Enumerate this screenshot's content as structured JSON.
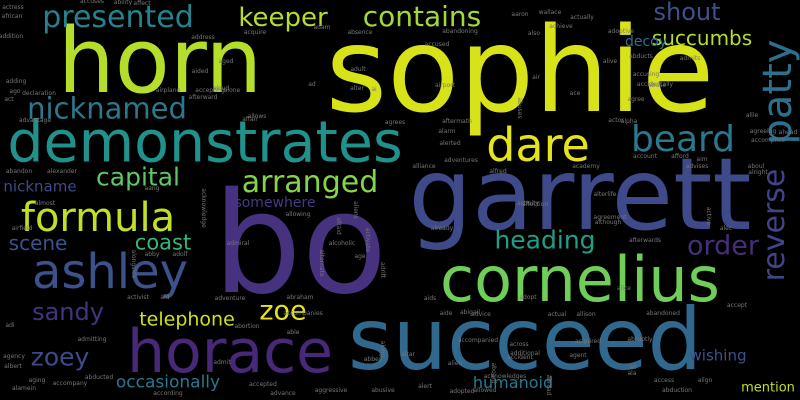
{
  "words": [
    {
      "text": "sophie",
      "color": "#d8e219"
    },
    {
      "text": "bo",
      "color": "#46327e"
    },
    {
      "text": "horn",
      "color": "#b5de2b"
    },
    {
      "text": "succeed",
      "color": "#31688e"
    },
    {
      "text": "garrett",
      "color": "#3e4a89"
    },
    {
      "text": "demonstrates",
      "color": "#21918c"
    },
    {
      "text": "cornelius",
      "color": "#6ece58"
    },
    {
      "text": "horace",
      "color": "#482878"
    },
    {
      "text": "ashley",
      "color": "#3b528b"
    },
    {
      "text": "dare",
      "color": "#e5e419"
    },
    {
      "text": "formula",
      "color": "#c2df23"
    },
    {
      "text": "beard",
      "color": "#2a788e"
    },
    {
      "text": "presented",
      "color": "#26828e"
    },
    {
      "text": "contains",
      "color": "#a0da39"
    },
    {
      "text": "patty",
      "color": "#2d708e"
    },
    {
      "text": "keeper",
      "color": "#b5de2b"
    },
    {
      "text": "nicknamed",
      "color": "#2a788e"
    },
    {
      "text": "arranged",
      "color": "#86d549"
    },
    {
      "text": "capital",
      "color": "#5ec962"
    },
    {
      "text": "reverse",
      "color": "#414487"
    },
    {
      "text": "shout",
      "color": "#3b528b"
    },
    {
      "text": "succumbs",
      "color": "#b5de2b"
    },
    {
      "text": "heading",
      "color": "#1f9e89"
    },
    {
      "text": "order",
      "color": "#472d7b"
    },
    {
      "text": "zoe",
      "color": "#e5e419"
    },
    {
      "text": "coast",
      "color": "#35b779"
    },
    {
      "text": "scene",
      "color": "#3b528b"
    },
    {
      "text": "sandy",
      "color": "#46337e"
    },
    {
      "text": "zoey",
      "color": "#3e4a89"
    },
    {
      "text": "telephone",
      "color": "#d0e11c"
    },
    {
      "text": "occasionally",
      "color": "#2a788e"
    },
    {
      "text": "humanoid",
      "color": "#2a788e"
    },
    {
      "text": "decoy",
      "color": "#2d708e"
    },
    {
      "text": "nickname",
      "color": "#3e4a89"
    },
    {
      "text": "somewhere",
      "color": "#443a83"
    },
    {
      "text": "wishing",
      "color": "#3b528b"
    },
    {
      "text": "mention",
      "color": "#c2df23"
    },
    {
      "text": "accuses",
      "color": "#777777"
    },
    {
      "text": "ability",
      "color": "#777777"
    },
    {
      "text": "affect",
      "color": "#777777"
    },
    {
      "text": "address",
      "color": "#777777"
    },
    {
      "text": "african",
      "color": "#777777"
    },
    {
      "text": "actress",
      "color": "#777777"
    },
    {
      "text": "accepting",
      "color": "#777777"
    },
    {
      "text": "airplane",
      "color": "#777777"
    },
    {
      "text": "aboard",
      "color": "#777777"
    },
    {
      "text": "abbey",
      "color": "#777777"
    },
    {
      "text": "admiral",
      "color": "#777777"
    },
    {
      "text": "alcoholic",
      "color": "#777777"
    },
    {
      "text": "airfield",
      "color": "#777777"
    },
    {
      "text": "alexander",
      "color": "#777777"
    },
    {
      "text": "almost",
      "color": "#777777"
    },
    {
      "text": "abandon",
      "color": "#777777"
    },
    {
      "text": "activist",
      "color": "#777777"
    },
    {
      "text": "abraham",
      "color": "#777777"
    },
    {
      "text": "accompanies",
      "color": "#777777"
    },
    {
      "text": "abortion",
      "color": "#777777"
    },
    {
      "text": "admitting",
      "color": "#777777"
    },
    {
      "text": "agency",
      "color": "#777777"
    },
    {
      "text": "albert",
      "color": "#777777"
    },
    {
      "text": "aging",
      "color": "#777777"
    },
    {
      "text": "alamein",
      "color": "#777777"
    },
    {
      "text": "abducted",
      "color": "#777777"
    },
    {
      "text": "accompany",
      "color": "#777777"
    },
    {
      "text": "accepted",
      "color": "#777777"
    },
    {
      "text": "aggressive",
      "color": "#777777"
    },
    {
      "text": "abusive",
      "color": "#777777"
    },
    {
      "text": "alert",
      "color": "#777777"
    },
    {
      "text": "adopted",
      "color": "#777777"
    },
    {
      "text": "allowed",
      "color": "#777777"
    },
    {
      "text": "advance",
      "color": "#777777"
    },
    {
      "text": "according",
      "color": "#777777"
    },
    {
      "text": "altar",
      "color": "#777777"
    },
    {
      "text": "accompanied",
      "color": "#777777"
    },
    {
      "text": "abigail",
      "color": "#777777"
    },
    {
      "text": "advice",
      "color": "#777777"
    },
    {
      "text": "actual",
      "color": "#777777"
    },
    {
      "text": "additional",
      "color": "#777777"
    },
    {
      "text": "across",
      "color": "#777777"
    },
    {
      "text": "agent",
      "color": "#777777"
    },
    {
      "text": "acquired",
      "color": "#777777"
    },
    {
      "text": "abandoned",
      "color": "#777777"
    },
    {
      "text": "alice",
      "color": "#777777"
    },
    {
      "text": "allison",
      "color": "#777777"
    },
    {
      "text": "access",
      "color": "#777777"
    },
    {
      "text": "abduction",
      "color": "#777777"
    },
    {
      "text": "account",
      "color": "#777777"
    },
    {
      "text": "advises",
      "color": "#777777"
    },
    {
      "text": "afterwards",
      "color": "#777777"
    },
    {
      "text": "abroad",
      "color": "#777777"
    },
    {
      "text": "academy",
      "color": "#777777"
    },
    {
      "text": "alliance",
      "color": "#777777"
    },
    {
      "text": "agreement",
      "color": "#777777"
    },
    {
      "text": "although",
      "color": "#777777"
    },
    {
      "text": "alterlife",
      "color": "#777777"
    },
    {
      "text": "actor",
      "color": "#777777"
    },
    {
      "text": "alpha",
      "color": "#777777"
    },
    {
      "text": "aftermath",
      "color": "#777777"
    },
    {
      "text": "alarm",
      "color": "#777777"
    },
    {
      "text": "alerted",
      "color": "#777777"
    },
    {
      "text": "activity",
      "color": "#777777"
    },
    {
      "text": "affection",
      "color": "#777777"
    },
    {
      "text": "already",
      "color": "#777777"
    },
    {
      "text": "alive",
      "color": "#777777"
    },
    {
      "text": "alter",
      "color": "#777777"
    },
    {
      "text": "adult",
      "color": "#777777"
    },
    {
      "text": "ago",
      "color": "#777777"
    },
    {
      "text": "aided",
      "color": "#777777"
    },
    {
      "text": "aloud",
      "color": "#777777"
    },
    {
      "text": "accusing",
      "color": "#777777"
    },
    {
      "text": "adoptive",
      "color": "#777777"
    },
    {
      "text": "abducts",
      "color": "#777777"
    },
    {
      "text": "admits",
      "color": "#777777"
    },
    {
      "text": "agree",
      "color": "#777777"
    },
    {
      "text": "allie",
      "color": "#777777"
    },
    {
      "text": "ahead",
      "color": "#777777"
    },
    {
      "text": "agreeing",
      "color": "#777777"
    },
    {
      "text": "accomplice",
      "color": "#777777"
    },
    {
      "text": "afford",
      "color": "#777777"
    },
    {
      "text": "aaron",
      "color": "#777777"
    },
    {
      "text": "wallace",
      "color": "#777777"
    },
    {
      "text": "actually",
      "color": "#777777"
    },
    {
      "text": "achieve",
      "color": "#777777"
    },
    {
      "text": "also",
      "color": "#777777"
    },
    {
      "text": "abandoning",
      "color": "#777777"
    },
    {
      "text": "accused",
      "color": "#777777"
    },
    {
      "text": "absence",
      "color": "#777777"
    },
    {
      "text": "acquire",
      "color": "#777777"
    },
    {
      "text": "addition",
      "color": "#777777"
    },
    {
      "text": "aged",
      "color": "#777777"
    },
    {
      "text": "alone",
      "color": "#777777"
    },
    {
      "text": "airport",
      "color": "#777777"
    },
    {
      "text": "alien",
      "color": "#777777"
    },
    {
      "text": "accident",
      "color": "#777777"
    },
    {
      "text": "afterward",
      "color": "#777777"
    },
    {
      "text": "affair",
      "color": "#777777"
    },
    {
      "text": "allows",
      "color": "#777777"
    },
    {
      "text": "agrees",
      "color": "#777777"
    },
    {
      "text": "advantage",
      "color": "#777777"
    },
    {
      "text": "declaration",
      "color": "#777777"
    },
    {
      "text": "adding",
      "color": "#777777"
    },
    {
      "text": "act",
      "color": "#777777"
    },
    {
      "text": "air",
      "color": "#777777"
    },
    {
      "text": "ace",
      "color": "#777777"
    },
    {
      "text": "aang",
      "color": "#777777"
    },
    {
      "text": "acknowledge",
      "color": "#777777"
    },
    {
      "text": "abby",
      "color": "#777777"
    },
    {
      "text": "adolf",
      "color": "#777777"
    },
    {
      "text": "allowing",
      "color": "#777777"
    },
    {
      "text": "active",
      "color": "#777777"
    },
    {
      "text": "alright",
      "color": "#777777"
    },
    {
      "text": "aboul",
      "color": "#777777"
    },
    {
      "text": "alec",
      "color": "#777777"
    },
    {
      "text": "adventure",
      "color": "#777777"
    },
    {
      "text": "aid",
      "color": "#777777"
    },
    {
      "text": "aids",
      "color": "#777777"
    },
    {
      "text": "adopt",
      "color": "#777777"
    },
    {
      "text": "aide",
      "color": "#777777"
    },
    {
      "text": "accept",
      "color": "#777777"
    },
    {
      "text": "able",
      "color": "#777777"
    },
    {
      "text": "admit",
      "color": "#777777"
    },
    {
      "text": "align",
      "color": "#777777"
    },
    {
      "text": "ad",
      "color": "#777777"
    },
    {
      "text": "ai",
      "color": "#777777"
    },
    {
      "text": "age",
      "color": "#777777"
    },
    {
      "text": "ali",
      "color": "#777777"
    },
    {
      "text": "ala",
      "color": "#777777"
    },
    {
      "text": "adi",
      "color": "#777777"
    },
    {
      "text": "alternate",
      "color": "#777777"
    },
    {
      "text": "along",
      "color": "#777777"
    },
    {
      "text": "abuse",
      "color": "#777777"
    },
    {
      "text": "alongside",
      "color": "#777777"
    },
    {
      "text": "activate",
      "color": "#777777"
    },
    {
      "text": "aliens",
      "color": "#777777"
    },
    {
      "text": "adrift",
      "color": "#777777"
    },
    {
      "text": "adventures",
      "color": "#777777"
    },
    {
      "text": "acknowledges",
      "color": "#777777"
    },
    {
      "text": "alfred",
      "color": "#777777"
    },
    {
      "text": "accidentally",
      "color": "#777777"
    },
    {
      "text": "abruptly",
      "color": "#777777"
    },
    {
      "text": "aim",
      "color": "#777777"
    },
    {
      "text": "afraid",
      "color": "#777777"
    },
    {
      "text": "abuses",
      "color": "#777777"
    },
    {
      "text": "adam",
      "color": "#777777"
    },
    {
      "text": "advanced",
      "color": "#777777"
    },
    {
      "text": "ali",
      "color": "#777777"
    }
  ]
}
